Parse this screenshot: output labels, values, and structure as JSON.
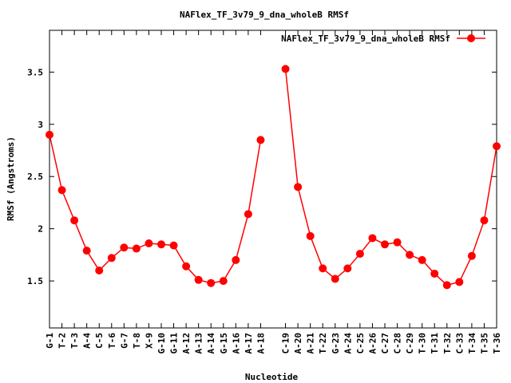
{
  "chart_data": {
    "type": "line",
    "title": "NAFlex_TF_3v79_9_dna_wholeB RMSf",
    "xlabel": "Nucleotide",
    "ylabel": "RMSf (Angstroms)",
    "ylim": [
      1.05,
      3.9
    ],
    "y_ticks": [
      "1.5",
      "2",
      "2.5",
      "3",
      "3.5"
    ],
    "legend_position": "top-right",
    "grid": false,
    "series_color": "#ff0000",
    "x_positions": [
      1,
      2,
      3,
      4,
      5,
      6,
      7,
      8,
      9,
      10,
      11,
      12,
      13,
      14,
      15,
      16,
      17,
      18,
      20,
      21,
      22,
      23,
      24,
      25,
      26,
      27,
      28,
      29,
      30,
      31,
      32,
      33,
      34,
      35,
      36,
      37
    ],
    "x_range": [
      1,
      37
    ],
    "categories": [
      "G-1",
      "T-2",
      "T-3",
      "A-4",
      "C-5",
      "T-6",
      "G-7",
      "T-8",
      "X-9",
      "G-10",
      "G-11",
      "A-12",
      "A-13",
      "A-14",
      "G-15",
      "A-16",
      "A-17",
      "A-18",
      "C-19",
      "A-20",
      "A-21",
      "T-22",
      "G-23",
      "A-24",
      "C-25",
      "A-26",
      "C-27",
      "C-28",
      "C-29",
      "T-30",
      "T-31",
      "T-32",
      "C-33",
      "T-34",
      "T-35",
      "T-36"
    ],
    "series": [
      {
        "name": "NAFlex_TF_3v79_9_dna_wholeB RMSf",
        "segments": [
          [
            2.9,
            2.37,
            2.08,
            1.79,
            1.6,
            1.72,
            1.82,
            1.81,
            1.86,
            1.85,
            1.84,
            1.64,
            1.51,
            1.48,
            1.5,
            1.7,
            2.14,
            2.85
          ],
          [
            3.53,
            2.4,
            1.93,
            1.62,
            1.52,
            1.62,
            1.76,
            1.91,
            1.85,
            1.87,
            1.75,
            1.7,
            1.57,
            1.46,
            1.49,
            1.74,
            2.08,
            2.79
          ]
        ]
      }
    ]
  }
}
